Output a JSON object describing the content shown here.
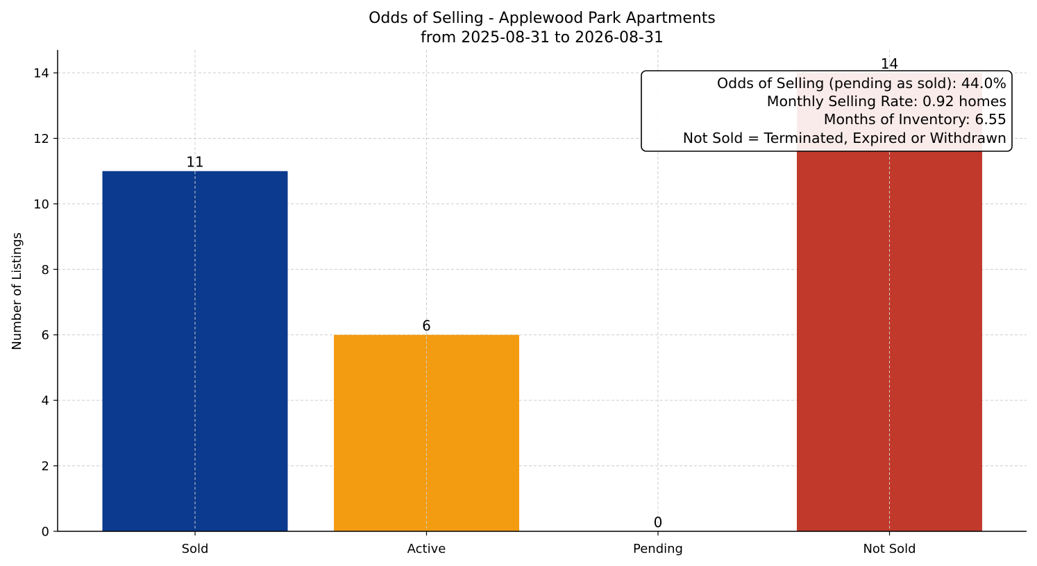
{
  "chart_data": {
    "type": "bar",
    "title": "Odds of Selling - Applewood Park Apartments",
    "subtitle": "from 2025-08-31 to 2026-08-31",
    "xlabel": "",
    "ylabel": "Number of Listings",
    "categories": [
      "Sold",
      "Active",
      "Pending",
      "Not Sold"
    ],
    "values": [
      11,
      6,
      0,
      14
    ],
    "data_labels": [
      "11",
      "6",
      "0",
      "14"
    ],
    "colors": [
      "#0b3a8e",
      "#f39c12",
      "#f39c12",
      "#c0392b"
    ],
    "ylim": [
      0,
      14.7
    ],
    "yticks": [
      0,
      2,
      4,
      6,
      8,
      10,
      12,
      14
    ],
    "ytick_labels": [
      "0",
      "2",
      "4",
      "6",
      "8",
      "10",
      "12",
      "14"
    ],
    "grid": true,
    "legend": "none",
    "annotation": {
      "placement": "top-right",
      "lines": [
        "Odds of Selling (pending as sold): 44.0%",
        "Monthly Selling Rate: 0.92 homes",
        "Months of Inventory: 6.55",
        "Not Sold = Terminated, Expired or Withdrawn"
      ]
    }
  }
}
